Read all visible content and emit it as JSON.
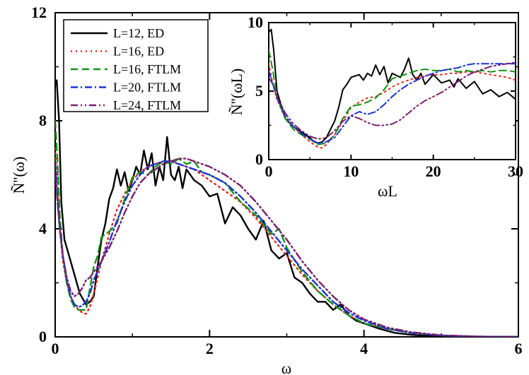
{
  "chart_data": [
    {
      "type": "line",
      "panel": "main",
      "xlabel": "ω",
      "ylabel": "Ñ''(ω)",
      "xlim": [
        0,
        6
      ],
      "ylim": [
        0,
        12
      ],
      "xticks": [
        "0",
        "2",
        "4",
        "6"
      ],
      "yticks": [
        "0",
        "4",
        "8",
        "12"
      ],
      "legend_position": "top-left",
      "series": [
        {
          "name": "L=12,  ED",
          "color": "#000000",
          "dash": "",
          "x": [
            0,
            0.02,
            0.05,
            0.08,
            0.12,
            0.18,
            0.25,
            0.32,
            0.4,
            0.45,
            0.5,
            0.55,
            0.6,
            0.65,
            0.7,
            0.75,
            0.8,
            0.85,
            0.9,
            0.95,
            1.0,
            1.05,
            1.1,
            1.15,
            1.2,
            1.25,
            1.3,
            1.35,
            1.4,
            1.45,
            1.5,
            1.55,
            1.6,
            1.65,
            1.7,
            1.8,
            1.9,
            2.0,
            2.1,
            2.2,
            2.3,
            2.4,
            2.5,
            2.6,
            2.7,
            2.8,
            2.9,
            3.0,
            3.1,
            3.2,
            3.3,
            3.4,
            3.5,
            3.6,
            3.7,
            3.8,
            3.9,
            4.0,
            4.2,
            4.4,
            4.6,
            4.8,
            5.0,
            5.2,
            5.5,
            6.0
          ],
          "y": [
            9.3,
            9.5,
            8.0,
            5.0,
            3.6,
            3.0,
            2.3,
            1.6,
            1.2,
            1.3,
            1.5,
            2.6,
            3.6,
            4.2,
            5.1,
            5.5,
            6.2,
            5.6,
            6.1,
            5.4,
            5.8,
            6.3,
            6.0,
            6.9,
            6.2,
            6.8,
            5.6,
            6.3,
            5.8,
            7.4,
            6.0,
            5.8,
            6.3,
            5.5,
            6.2,
            5.8,
            5.6,
            5.2,
            5.3,
            4.2,
            4.8,
            4.5,
            4.0,
            3.6,
            4.3,
            3.2,
            2.9,
            3.1,
            2.2,
            2.0,
            1.6,
            1.3,
            1.3,
            1.0,
            1.2,
            0.8,
            0.6,
            0.5,
            0.3,
            0.15,
            0.08,
            0.04,
            0.02,
            0.01,
            0.005,
            0.0
          ]
        },
        {
          "name": "L=16,  ED",
          "color": "#e8281e",
          "dash": "2 5",
          "x": [
            0,
            0.03,
            0.06,
            0.1,
            0.15,
            0.2,
            0.25,
            0.3,
            0.35,
            0.4,
            0.45,
            0.5,
            0.6,
            0.7,
            0.8,
            0.9,
            1.0,
            1.1,
            1.2,
            1.3,
            1.4,
            1.5,
            1.6,
            1.7,
            1.8,
            1.9,
            2.0,
            2.2,
            2.4,
            2.6,
            2.8,
            3.0,
            3.2,
            3.4,
            3.6,
            3.8,
            4.0,
            4.3,
            4.6,
            5.0,
            5.5,
            6.0
          ],
          "y": [
            7.0,
            5.5,
            4.0,
            2.8,
            2.0,
            1.5,
            1.2,
            1.0,
            0.9,
            0.85,
            1.1,
            1.6,
            2.8,
            3.8,
            4.7,
            5.3,
            5.8,
            6.1,
            6.3,
            6.4,
            6.5,
            6.5,
            6.4,
            6.3,
            6.2,
            6.0,
            5.8,
            5.4,
            5.0,
            4.4,
            3.7,
            3.0,
            2.3,
            1.7,
            1.2,
            0.8,
            0.5,
            0.3,
            0.15,
            0.05,
            0.01,
            0.0
          ]
        },
        {
          "name": "L=16,  FTLM",
          "color": "#129212",
          "dash": "10 6",
          "x": [
            0,
            0.03,
            0.06,
            0.1,
            0.15,
            0.2,
            0.25,
            0.3,
            0.35,
            0.4,
            0.45,
            0.5,
            0.55,
            0.6,
            0.7,
            0.8,
            0.9,
            1.0,
            1.1,
            1.2,
            1.3,
            1.4,
            1.5,
            1.6,
            1.7,
            1.8,
            1.9,
            2.0,
            2.2,
            2.4,
            2.6,
            2.8,
            2.9,
            3.0,
            3.2,
            3.4,
            3.6,
            3.8,
            4.0,
            4.3,
            4.6,
            5.0,
            5.5,
            6.0
          ],
          "y": [
            8.0,
            6.5,
            4.5,
            3.0,
            2.0,
            1.4,
            1.1,
            1.0,
            1.0,
            1.0,
            1.8,
            2.6,
            3.0,
            3.7,
            3.9,
            4.2,
            5.1,
            5.9,
            6.1,
            6.0,
            6.3,
            6.5,
            6.4,
            6.6,
            6.4,
            6.5,
            6.1,
            6.0,
            5.7,
            5.0,
            4.5,
            3.8,
            4.0,
            3.3,
            2.4,
            1.7,
            1.2,
            0.8,
            0.5,
            0.3,
            0.15,
            0.05,
            0.01,
            0.0
          ]
        },
        {
          "name": "L=20,  FTLM",
          "color": "#1a32d6",
          "dash": "10 4 2 4",
          "x": [
            0,
            0.03,
            0.06,
            0.1,
            0.15,
            0.2,
            0.25,
            0.3,
            0.35,
            0.4,
            0.45,
            0.5,
            0.6,
            0.7,
            0.8,
            0.9,
            1.0,
            1.1,
            1.2,
            1.3,
            1.4,
            1.5,
            1.6,
            1.7,
            1.8,
            1.9,
            2.0,
            2.2,
            2.4,
            2.6,
            2.8,
            3.0,
            3.2,
            3.4,
            3.6,
            3.8,
            4.0,
            4.3,
            4.6,
            5.0,
            5.5,
            6.0
          ],
          "y": [
            6.5,
            5.0,
            4.0,
            3.0,
            2.1,
            1.5,
            1.2,
            1.1,
            1.15,
            1.3,
            1.6,
            2.1,
            2.8,
            3.5,
            4.3,
            5.0,
            5.6,
            6.0,
            6.3,
            6.4,
            6.5,
            6.5,
            6.4,
            6.3,
            6.2,
            6.1,
            6.0,
            5.7,
            5.2,
            4.6,
            3.9,
            3.2,
            2.5,
            1.9,
            1.3,
            0.9,
            0.6,
            0.3,
            0.15,
            0.05,
            0.01,
            0.0
          ]
        },
        {
          "name": "L=24,  FTLM",
          "color": "#7a1e6c",
          "dash": "10 4 2 4 2 4",
          "x": [
            0,
            0.03,
            0.06,
            0.1,
            0.15,
            0.2,
            0.25,
            0.3,
            0.35,
            0.4,
            0.45,
            0.5,
            0.6,
            0.7,
            0.8,
            0.9,
            1.0,
            1.1,
            1.2,
            1.3,
            1.4,
            1.5,
            1.6,
            1.7,
            1.8,
            1.9,
            2.0,
            2.2,
            2.4,
            2.6,
            2.8,
            3.0,
            3.2,
            3.4,
            3.6,
            3.8,
            4.0,
            4.3,
            4.6,
            5.0,
            5.5,
            6.0
          ],
          "y": [
            6.0,
            5.0,
            4.0,
            3.0,
            2.2,
            1.7,
            1.5,
            1.6,
            1.8,
            2.1,
            2.2,
            2.4,
            2.8,
            3.3,
            3.9,
            4.6,
            5.2,
            5.7,
            6.0,
            6.2,
            6.4,
            6.5,
            6.6,
            6.6,
            6.5,
            6.4,
            6.3,
            6.0,
            5.6,
            5.0,
            4.3,
            3.6,
            2.8,
            2.1,
            1.5,
            1.0,
            0.65,
            0.35,
            0.18,
            0.06,
            0.01,
            0.0
          ]
        }
      ]
    },
    {
      "type": "line",
      "panel": "inset",
      "xlabel": "ωL",
      "ylabel": "Ñ''(ωL)",
      "xlim": [
        0,
        30
      ],
      "ylim": [
        0,
        10
      ],
      "xticks": [
        "0",
        "10",
        "20",
        "30"
      ],
      "yticks": [
        "0",
        "5",
        "10"
      ],
      "series": [
        {
          "name": "L=12,  ED",
          "x": [
            0,
            0.3,
            0.6,
            1,
            2,
            3,
            4,
            5,
            5.5,
            6,
            6.5,
            7,
            8,
            8.5,
            9,
            9.5,
            10,
            11,
            11.5,
            12,
            12.5,
            13,
            13.5,
            14,
            14.5,
            15,
            16,
            16.5,
            17,
            17.5,
            18,
            18.5,
            19,
            20,
            21,
            22,
            22.5,
            23,
            24,
            25,
            26,
            27,
            28,
            29,
            30
          ],
          "y": [
            9.3,
            9.5,
            8.0,
            5.0,
            3.0,
            2.4,
            2.0,
            1.6,
            1.3,
            1.2,
            1.3,
            1.6,
            2.8,
            3.8,
            5.1,
            5.5,
            6.0,
            6.2,
            5.8,
            6.3,
            6.1,
            6.9,
            6.2,
            6.8,
            5.6,
            6.3,
            6.0,
            6.6,
            7.4,
            6.2,
            5.8,
            6.3,
            5.5,
            6.2,
            5.6,
            5.8,
            5.3,
            5.9,
            5.2,
            5.7,
            4.8,
            5.1,
            4.6,
            4.9,
            4.4
          ]
        },
        {
          "name": "L=16,  ED",
          "x": [
            0,
            0.5,
            1,
            2,
            3,
            4,
            5,
            6,
            6.5,
            7,
            8,
            9,
            10,
            11,
            12,
            13,
            14,
            15,
            16,
            17,
            18,
            19,
            20,
            21,
            22,
            23,
            24,
            25,
            26,
            27,
            28,
            29,
            30
          ],
          "y": [
            7.0,
            5.5,
            4.4,
            3.0,
            2.4,
            1.8,
            1.3,
            0.9,
            0.85,
            1.1,
            1.8,
            2.8,
            3.8,
            4.2,
            4.5,
            4.6,
            4.9,
            5.3,
            5.6,
            5.8,
            6.0,
            6.1,
            6.2,
            6.2,
            6.3,
            6.3,
            6.4,
            6.4,
            6.3,
            6.2,
            6.1,
            6.0,
            5.8
          ]
        },
        {
          "name": "L=16,  FTLM",
          "x": [
            0,
            0.5,
            1,
            2,
            3,
            4,
            5,
            6,
            7,
            8,
            9,
            10,
            11,
            12,
            13,
            14,
            15,
            16,
            17,
            18,
            19,
            20,
            21,
            22,
            23,
            24,
            25,
            26,
            27,
            28,
            29,
            30
          ],
          "y": [
            8.0,
            6.5,
            4.5,
            3.0,
            2.2,
            1.8,
            1.5,
            1.1,
            1.2,
            1.8,
            3.0,
            3.9,
            4.0,
            4.2,
            4.5,
            5.1,
            5.9,
            6.1,
            6.3,
            6.5,
            6.6,
            6.5,
            6.5,
            6.6,
            6.4,
            6.5,
            6.4,
            6.5,
            6.4,
            6.5,
            6.5,
            6.4
          ]
        },
        {
          "name": "L=20,  FTLM",
          "x": [
            0,
            0.5,
            1,
            2,
            3,
            4,
            5,
            6,
            7,
            8,
            9,
            10,
            11,
            12,
            13,
            14,
            15,
            16,
            17,
            18,
            19,
            20,
            21,
            22,
            23,
            24,
            25,
            26,
            27,
            28,
            29,
            30
          ],
          "y": [
            6.5,
            5.5,
            4.5,
            3.2,
            2.4,
            1.9,
            1.5,
            1.2,
            1.3,
            1.6,
            2.4,
            3.2,
            3.5,
            3.3,
            3.5,
            4.0,
            4.6,
            5.1,
            5.5,
            5.8,
            6.1,
            6.3,
            6.5,
            6.6,
            6.7,
            6.9,
            7.0,
            7.0,
            7.0,
            7.0,
            7.0,
            7.0
          ]
        },
        {
          "name": "L=24,  FTLM",
          "x": [
            0,
            0.5,
            1,
            2,
            3,
            4,
            5,
            6,
            7,
            8,
            9,
            10,
            11,
            12,
            13,
            14,
            15,
            16,
            17,
            18,
            19,
            20,
            21,
            22,
            23,
            24,
            25,
            26,
            27,
            28,
            29,
            30
          ],
          "y": [
            6.0,
            5.5,
            4.6,
            3.4,
            2.6,
            2.1,
            1.7,
            1.5,
            1.6,
            2.1,
            2.8,
            3.2,
            3.0,
            2.7,
            2.5,
            2.5,
            2.6,
            2.9,
            3.4,
            3.9,
            4.3,
            4.6,
            4.9,
            5.3,
            5.7,
            6.1,
            6.4,
            6.6,
            6.8,
            6.9,
            7.0,
            7.1
          ]
        }
      ]
    }
  ]
}
